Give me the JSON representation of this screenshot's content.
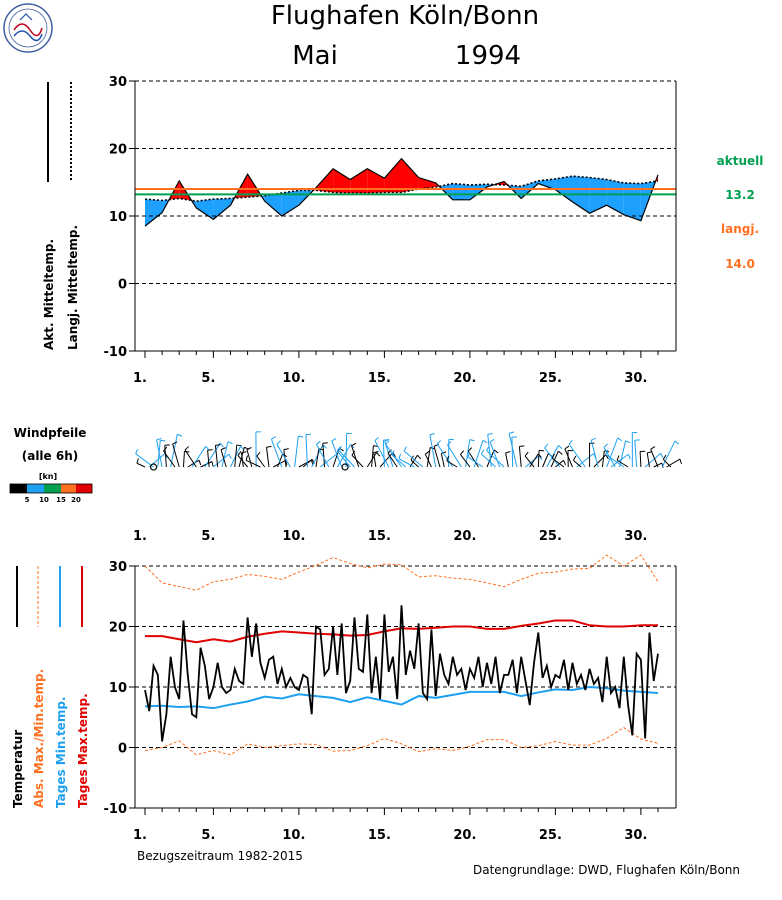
{
  "header": {
    "title": "Flughafen Köln/Bonn",
    "month": "Mai",
    "year": "1994"
  },
  "colors": {
    "above": "#ff0000",
    "below": "#1ea0ff",
    "current_mean": "#00a050",
    "longterm_mean": "#ff7020",
    "min_temp": "#1ea0f0",
    "max_temp": "#e00000",
    "abs_extreme": "#ff7020"
  },
  "chart_data": [
    {
      "type": "area",
      "ylim": [
        -10,
        30
      ],
      "yticks": [
        "30",
        "20",
        "10",
        "0",
        "-10"
      ],
      "xticks": [
        "1.",
        "5.",
        "10.",
        "15.",
        "20.",
        "25.",
        "30."
      ],
      "legend_left": [
        "Akt. Mitteltemp.",
        "Langj. Mitteltemp."
      ],
      "side_legend": {
        "actual_label": "aktuell",
        "actual_value": "13.2",
        "longterm_label": "langj.",
        "longterm_value": "14.0"
      },
      "series": [
        {
          "name": "Akt. Mitteltemp.",
          "x": [
            1,
            2,
            3,
            4,
            5,
            6,
            7,
            8,
            9,
            10,
            11,
            12,
            13,
            14,
            15,
            16,
            17,
            18,
            19,
            20,
            21,
            22,
            23,
            24,
            25,
            26,
            27,
            28,
            29,
            30,
            31
          ],
          "values": [
            8.5,
            10.5,
            15.2,
            11.2,
            9.5,
            11.6,
            16.2,
            12.2,
            10.0,
            11.6,
            14.2,
            17.0,
            15.4,
            17.0,
            15.6,
            18.5,
            15.7,
            14.9,
            12.4,
            12.4,
            14.3,
            15.1,
            12.6,
            14.8,
            13.9,
            12.1,
            10.4,
            11.6,
            10.2,
            9.3,
            16.1
          ]
        },
        {
          "name": "Langj. Mitteltemp.",
          "x": [
            1,
            2,
            3,
            4,
            5,
            6,
            7,
            8,
            9,
            10,
            11,
            12,
            13,
            14,
            15,
            16,
            17,
            18,
            19,
            20,
            21,
            22,
            23,
            24,
            25,
            26,
            27,
            28,
            29,
            30,
            31
          ],
          "values": [
            12.5,
            12.3,
            12.6,
            12.2,
            12.5,
            12.6,
            12.8,
            13.0,
            13.4,
            13.8,
            13.8,
            13.5,
            13.4,
            13.4,
            13.5,
            13.5,
            14.0,
            14.3,
            14.8,
            14.6,
            14.7,
            14.6,
            14.4,
            15.2,
            15.5,
            15.9,
            15.7,
            15.4,
            14.9,
            14.8,
            15.2
          ]
        }
      ],
      "mean_actual": 13.2,
      "mean_longterm": 14.0
    },
    {
      "type": "scatter",
      "title": "Windpfeile",
      "subtitle": "(alle 6h)",
      "scale_label": "[kn]",
      "scale_ticks": [
        "5",
        "10",
        "15",
        "20"
      ],
      "xticks": [
        "1.",
        "5.",
        "10.",
        "15.",
        "20.",
        "25.",
        "30."
      ]
    },
    {
      "type": "line",
      "ylim": [
        -10,
        30
      ],
      "yticks": [
        "30",
        "20",
        "10",
        "0",
        "-10"
      ],
      "xticks": [
        "1.",
        "5.",
        "10.",
        "15.",
        "20.",
        "25.",
        "30."
      ],
      "legend_left": [
        "Temperatur",
        "Abs. Max./Min.temp.",
        "Tages Min.temp.",
        "Tages Max.temp."
      ],
      "footer_left": "Bezugszeitraum 1982-2015",
      "footer_right": "Datengrundlage: DWD, Flughafen Köln/Bonn",
      "series": [
        {
          "name": "Tages Max.temp.",
          "x": [
            1,
            2,
            3,
            4,
            5,
            6,
            7,
            8,
            9,
            10,
            11,
            12,
            13,
            14,
            15,
            16,
            17,
            18,
            19,
            20,
            21,
            22,
            23,
            24,
            25,
            26,
            27,
            28,
            29,
            30,
            31
          ],
          "values": [
            18.4,
            18.4,
            17.9,
            17.4,
            17.9,
            17.5,
            18.3,
            18.8,
            19.2,
            19.0,
            18.8,
            18.7,
            18.5,
            18.6,
            19.2,
            19.7,
            19.6,
            19.8,
            20.0,
            20.0,
            19.6,
            19.6,
            20.1,
            20.5,
            21.0,
            21.0,
            20.2,
            20.0,
            20.0,
            20.2,
            20.2
          ]
        },
        {
          "name": "Tages Min.temp.",
          "x": [
            1,
            2,
            3,
            4,
            5,
            6,
            7,
            8,
            9,
            10,
            11,
            12,
            13,
            14,
            15,
            16,
            17,
            18,
            19,
            20,
            21,
            22,
            23,
            24,
            25,
            26,
            27,
            28,
            29,
            30,
            31
          ],
          "values": [
            6.8,
            6.9,
            6.7,
            6.8,
            6.5,
            7.1,
            7.6,
            8.4,
            8.1,
            8.8,
            8.5,
            8.2,
            7.5,
            8.3,
            7.7,
            7.1,
            8.5,
            8.2,
            8.7,
            9.2,
            9.2,
            9.2,
            8.5,
            9.1,
            9.6,
            9.5,
            10.0,
            9.8,
            9.4,
            9.2,
            9.0
          ]
        },
        {
          "name": "Abs. Max./Min.temp.",
          "x": [
            1,
            2,
            3,
            4,
            5,
            6,
            7,
            8,
            9,
            10,
            11,
            12,
            13,
            14,
            15,
            16,
            17,
            18,
            19,
            20,
            21,
            22,
            23,
            24,
            25,
            26,
            27,
            28,
            29,
            30,
            31
          ],
          "values": [
            30.0,
            27.2,
            26.6,
            26.0,
            27.4,
            27.8,
            28.6,
            28.3,
            27.8,
            29.0,
            30.1,
            31.4,
            30.4,
            29.7,
            30.3,
            30.2,
            28.2,
            28.4,
            28.0,
            27.8,
            27.2,
            26.6,
            27.8,
            28.8,
            29.0,
            29.5,
            29.6,
            31.8,
            30.0,
            31.8,
            27.4
          ]
        },
        {
          "name": "Abs. Max./Min.temp.",
          "x": [
            1,
            2,
            3,
            4,
            5,
            6,
            7,
            8,
            9,
            10,
            11,
            12,
            13,
            14,
            15,
            16,
            17,
            18,
            19,
            20,
            21,
            22,
            23,
            24,
            25,
            26,
            27,
            28,
            29,
            30,
            31
          ],
          "values": [
            -0.5,
            0.0,
            1.1,
            -1.2,
            -0.5,
            -1.2,
            0.6,
            0.0,
            0.3,
            0.6,
            0.5,
            -0.6,
            -0.5,
            0.3,
            1.5,
            0.6,
            -0.7,
            -0.2,
            -0.5,
            0.2,
            1.3,
            1.3,
            0.0,
            0.3,
            1.0,
            0.4,
            0.4,
            1.5,
            3.3,
            1.4,
            0.7
          ]
        },
        {
          "name": "Temperatur",
          "x": [
            1.0,
            1.25,
            1.5,
            1.75,
            2.0,
            2.25,
            2.5,
            2.75,
            3.0,
            3.25,
            3.5,
            3.75,
            4.0,
            4.25,
            4.5,
            4.75,
            5.0,
            5.25,
            5.5,
            5.75,
            6.0,
            6.25,
            6.5,
            6.75,
            7.0,
            7.25,
            7.5,
            7.75,
            8.0,
            8.25,
            8.5,
            8.75,
            9.0,
            9.25,
            9.5,
            9.75,
            10.0,
            10.25,
            10.5,
            10.75,
            11.0,
            11.25,
            11.5,
            11.75,
            12.0,
            12.25,
            12.5,
            12.75,
            13.0,
            13.25,
            13.5,
            13.75,
            14.0,
            14.25,
            14.5,
            14.75,
            15.0,
            15.25,
            15.5,
            15.75,
            16.0,
            16.25,
            16.5,
            16.75,
            17.0,
            17.25,
            17.5,
            17.75,
            18.0,
            18.25,
            18.5,
            18.75,
            19.0,
            19.25,
            19.5,
            19.75,
            20.0,
            20.25,
            20.5,
            20.75,
            21.0,
            21.25,
            21.5,
            21.75,
            22.0,
            22.25,
            22.5,
            22.75,
            23.0,
            23.25,
            23.5,
            23.75,
            24.0,
            24.25,
            24.5,
            24.75,
            25.0,
            25.25,
            25.5,
            25.75,
            26.0,
            26.25,
            26.5,
            26.75,
            27.0,
            27.25,
            27.5,
            27.75,
            28.0,
            28.25,
            28.5,
            28.75,
            29.0,
            29.25,
            29.5,
            29.75,
            30.0,
            30.25,
            30.5,
            30.75,
            31.0
          ],
          "values": [
            9.5,
            6.0,
            13.5,
            12.0,
            1.0,
            5.5,
            15.0,
            10.0,
            8.0,
            21.0,
            12.0,
            5.5,
            5.0,
            16.5,
            13.5,
            8.0,
            10.0,
            14.0,
            10.0,
            9.0,
            9.5,
            13.0,
            11.0,
            10.5,
            21.5,
            15.0,
            20.5,
            14.0,
            11.5,
            14.5,
            15.0,
            10.5,
            13.0,
            10.0,
            11.5,
            10.0,
            9.5,
            12.0,
            11.5,
            5.5,
            20.0,
            19.5,
            12.0,
            13.0,
            20.0,
            12.0,
            20.5,
            9.0,
            11.0,
            21.5,
            13.0,
            12.5,
            22.0,
            9.0,
            15.0,
            8.0,
            22.0,
            12.5,
            15.0,
            8.0,
            23.5,
            12.0,
            16.0,
            13.0,
            20.5,
            9.0,
            8.0,
            19.5,
            8.5,
            15.5,
            12.0,
            10.5,
            15.0,
            12.0,
            13.0,
            9.5,
            13.0,
            11.5,
            15.0,
            10.0,
            14.0,
            10.5,
            15.0,
            9.0,
            12.0,
            12.0,
            14.5,
            9.0,
            15.0,
            11.0,
            7.0,
            14.0,
            19.0,
            11.5,
            13.5,
            10.0,
            12.0,
            11.5,
            14.5,
            9.5,
            14.0,
            10.5,
            12.0,
            9.5,
            13.0,
            10.5,
            11.5,
            7.5,
            15.0,
            9.0,
            10.0,
            6.5,
            15.0,
            7.0,
            2.0,
            15.5,
            14.5,
            1.5,
            19.0,
            11.0,
            15.5
          ]
        }
      ]
    }
  ]
}
